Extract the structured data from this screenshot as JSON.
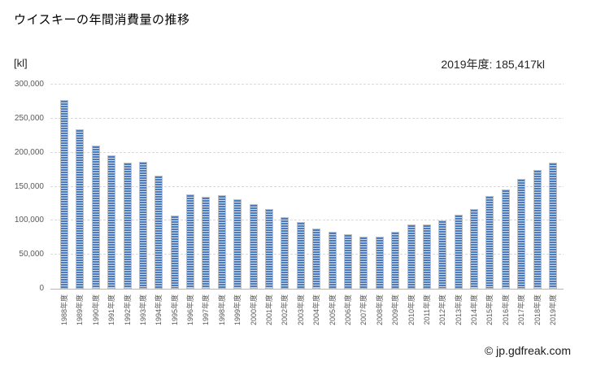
{
  "page": {
    "title": "ウイスキーの年間消費量の推移",
    "unit_label": "[kl]",
    "annotation": "2019年度: 185,417kl",
    "footer": "© jp.gdfreak.com"
  },
  "chart_data": {
    "type": "bar",
    "title": "ウイスキーの年間消費量の推移",
    "unit": "kl",
    "annotation": "2019年度: 185,417kl",
    "categories": [
      "1988年度",
      "1989年度",
      "1990年度",
      "1991年度",
      "1992年度",
      "1993年度",
      "1994年度",
      "1995年度",
      "1996年度",
      "1997年度",
      "1998年度",
      "1999年度",
      "2000年度",
      "2001年度",
      "2002年度",
      "2003年度",
      "2004年度",
      "2005年度",
      "2006年度",
      "2007年度",
      "2008年度",
      "2009年度",
      "2010年度",
      "2011年度",
      "2012年度",
      "2013年度",
      "2014年度",
      "2015年度",
      "2016年度",
      "2017年度",
      "2018年度",
      "2019年度"
    ],
    "values": [
      277000,
      234000,
      210000,
      196000,
      185000,
      186000,
      166000,
      108000,
      139000,
      135000,
      138000,
      132000,
      124000,
      117000,
      105000,
      98000,
      88000,
      84000,
      80000,
      76000,
      77000,
      84000,
      94000,
      95000,
      100000,
      109000,
      117000,
      136000,
      146000,
      161000,
      175000,
      185417
    ],
    "xlabel": "",
    "ylabel": "kl",
    "ylim": [
      0,
      300000
    ],
    "yticks": [
      0,
      50000,
      100000,
      150000,
      200000,
      250000,
      300000
    ],
    "ytick_labels": [
      "0",
      "50,000",
      "100,000",
      "150,000",
      "200,000",
      "250,000",
      "300,000"
    ],
    "grid": "horizontal-dashed",
    "legend": "none",
    "bar_stripe_dark": "#4d7cbe",
    "bar_stripe_light": "#cdd9ec",
    "bar_border": "#c0c0c0",
    "gridline_color": "#d9d9d9",
    "axis_line_color": "#b7b7b7",
    "tick_label_color": "#595959"
  }
}
